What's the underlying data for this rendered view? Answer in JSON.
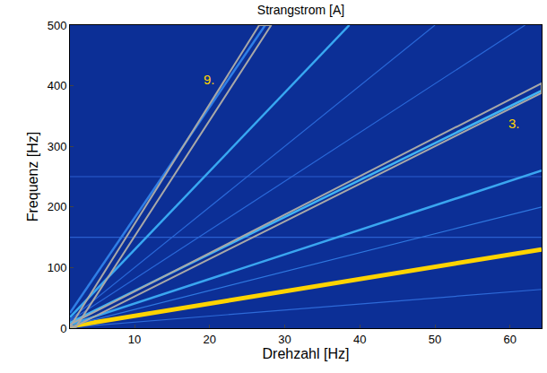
{
  "chart_data": {
    "type": "line",
    "title": "Strangstrom [A]",
    "x_label": "Drehzahl [Hz]",
    "y_label": "Frequenz [Hz]",
    "xlim": [
      1.4,
      64.2
    ],
    "ylim": [
      0,
      500
    ],
    "xticks": [
      10,
      20,
      30,
      40,
      50,
      60
    ],
    "yticks": [
      0,
      100,
      200,
      300,
      400,
      500
    ],
    "grid": false,
    "series": [
      {
        "color": "#2a5fd0",
        "line_style": "thin",
        "x": [
          1.4,
          64.2
        ],
        "values": [
          150,
          150
        ]
      },
      {
        "color": "#2a5fd0",
        "line_style": "thin",
        "x": [
          1.4,
          64.2
        ],
        "values": [
          250,
          250
        ]
      },
      {
        "color": "#2e6ad8",
        "line_style": "thin",
        "x": [
          1.4,
          64.2
        ],
        "values": [
          1.4,
          64
        ]
      },
      {
        "color": "#ffd400",
        "line_style": "bold",
        "x": [
          1.4,
          64.2
        ],
        "values": [
          3,
          130
        ]
      },
      {
        "color": "#2f78e0",
        "line_style": "thin",
        "x": [
          1.4,
          64.2
        ],
        "values": [
          4,
          200
        ]
      },
      {
        "color": "#3aa6f0",
        "line_style": "solid",
        "x": [
          1.4,
          64.2
        ],
        "values": [
          6,
          260
        ]
      },
      {
        "color": "#40b4f4",
        "line_style": "solid",
        "x": [
          1.4,
          64.2
        ],
        "values": [
          9,
          392
        ]
      },
      {
        "color": "#2a68d8",
        "line_style": "thin",
        "x": [
          1.4,
          62
        ],
        "values": [
          12,
          500
        ]
      },
      {
        "color": "#2a68d8",
        "line_style": "thin",
        "x": [
          1.4,
          50
        ],
        "values": [
          14,
          500
        ]
      },
      {
        "color": "#38a8f2",
        "line_style": "solid",
        "x": [
          1.4,
          38.6
        ],
        "values": [
          18,
          500
        ]
      },
      {
        "color": "#2f7ee6",
        "line_style": "solid",
        "x": [
          1.4,
          27.4
        ],
        "values": [
          25,
          500
        ]
      },
      {
        "color": "#a8a8a8",
        "line_style": "outline",
        "x": [
          1.4,
          64.2,
          64.2,
          1.9,
          1.4
        ],
        "values": [
          6,
          404,
          388,
          2,
          6
        ]
      },
      {
        "color": "#a8a8a8",
        "line_style": "outline",
        "x": [
          1.4,
          26.6,
          28.2,
          2.2,
          1.4
        ],
        "values": [
          2,
          500,
          500,
          2,
          2
        ]
      }
    ],
    "annotations": [
      {
        "text": "9.",
        "x": 20,
        "y": 410,
        "color": "#ffd400"
      },
      {
        "text": "3.",
        "x": 60.5,
        "y": 338,
        "color": "#ffd400"
      }
    ],
    "tick_labels": true
  }
}
